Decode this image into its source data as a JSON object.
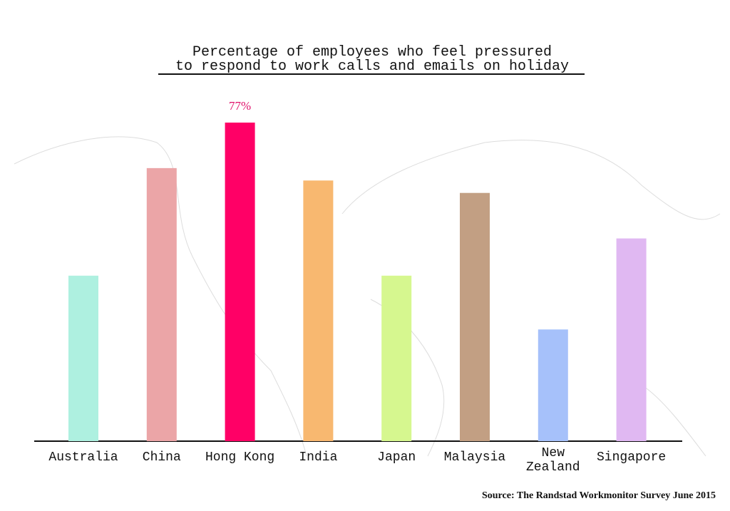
{
  "chart_data": {
    "type": "bar",
    "title": [
      "Percentage of employees who feel pressured",
      "to respond to work calls and emails on holiday"
    ],
    "categories": [
      "Australia",
      "China",
      "Hong Kong",
      "India",
      "Japan",
      "Malaysia",
      "New Zealand",
      "Singapore"
    ],
    "values": [
      40,
      66,
      77,
      63,
      40,
      60,
      27,
      49
    ],
    "value_labels": [
      null,
      null,
      "77%",
      null,
      null,
      null,
      null,
      null
    ],
    "colors": [
      "#aef0e0",
      "#eba5a7",
      "#ff0066",
      "#f8b870",
      "#d6f78f",
      "#c29f83",
      "#a6c1fa",
      "#e0b8f2"
    ],
    "label_color": "#e0106a",
    "source": "Source: The Randstad Workmonitor Survey June 2015"
  }
}
